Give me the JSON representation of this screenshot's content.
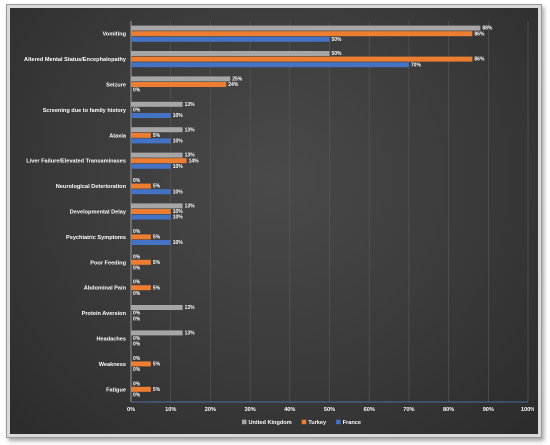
{
  "chart_data": {
    "type": "bar",
    "orientation": "horizontal",
    "title": "",
    "xlabel": "",
    "ylabel": "",
    "xlim": [
      0,
      100
    ],
    "x_ticks": [
      "0%",
      "10%",
      "20%",
      "30%",
      "40%",
      "50%",
      "60%",
      "70%",
      "80%",
      "90%",
      "100%"
    ],
    "grid": true,
    "legend_position": "bottom",
    "categories": [
      "Vomiting",
      "Altered Mental Status/Encephalopathy",
      "Seizure",
      "Screening due to family history",
      "Ataxia",
      "Liver Failure/Elevated Transaminases",
      "Neurological Deterioration",
      "Developmental Delay",
      "Psychiatric Symptoms",
      "Poor Feeding",
      "Abdominal Pain",
      "Protein Aversion",
      "Headaches",
      "Weakness",
      "Fatigue"
    ],
    "series": [
      {
        "name": "United Kingdom",
        "color": "#a6a6a6",
        "values": [
          88,
          50,
          25,
          13,
          13,
          13,
          0,
          13,
          0,
          0,
          0,
          13,
          13,
          0,
          0
        ],
        "labels": [
          "88%",
          "50%",
          "25%",
          "13%",
          "13%",
          "13%",
          "0%",
          "13%",
          "0%",
          "0%",
          "0%",
          "13%",
          "13%",
          "0%",
          "0%"
        ]
      },
      {
        "name": "Turkey",
        "color": "#ed7d31",
        "values": [
          86,
          86,
          24,
          0,
          5,
          14,
          5,
          10,
          5,
          5,
          5,
          0,
          0,
          5,
          5
        ],
        "labels": [
          "86%",
          "86%",
          "24%",
          "0%",
          "5%",
          "14%",
          "5%",
          "10%",
          "5%",
          "5%",
          "5%",
          "0%",
          "0%",
          "5%",
          "5%"
        ]
      },
      {
        "name": "France",
        "color": "#4472c4",
        "values": [
          50,
          70,
          0,
          10,
          10,
          10,
          10,
          10,
          10,
          0,
          0,
          0,
          0,
          0,
          0
        ],
        "labels": [
          "50%",
          "70%",
          "0%",
          "10%",
          "10%",
          "10%",
          "10%",
          "10%",
          "10%",
          "0%",
          "0%",
          "0%",
          "0%",
          "0%",
          "0%"
        ]
      }
    ]
  }
}
